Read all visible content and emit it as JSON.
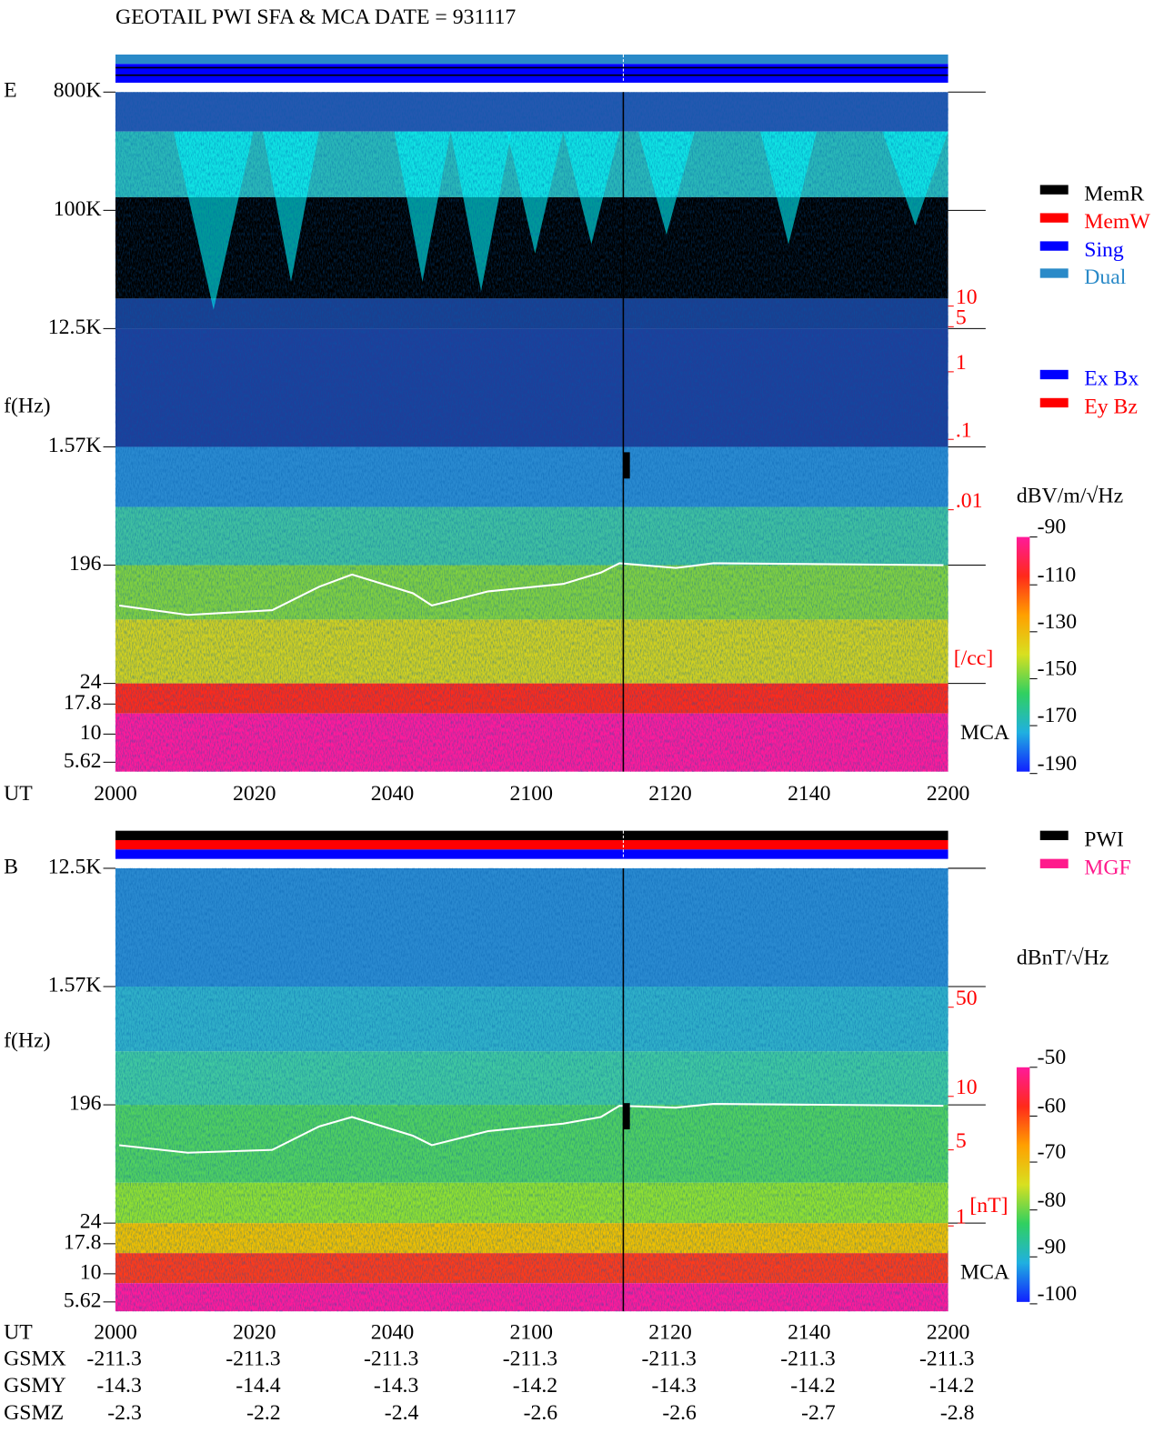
{
  "title": "GEOTAIL  PWI SFA & MCA   DATE = 931117",
  "panels": [
    {
      "label": "E",
      "freq_axis": {
        "label": "f(Hz)",
        "ticks": [
          "800K",
          "100K",
          "12.5K",
          "1.57K",
          "196",
          "24",
          "17.8",
          "10",
          "5.62"
        ]
      },
      "density_axis": {
        "ticks": [
          "10",
          "5",
          "1",
          ".1",
          ".01"
        ],
        "unit": "[/cc]"
      },
      "mca_label": "MCA",
      "time_axis": {
        "label": "UT",
        "ticks": [
          "2000",
          "2020",
          "2040",
          "2100",
          "2120",
          "2140",
          "2200"
        ]
      },
      "legends": [
        [
          {
            "name": "MemR",
            "color": "#000000"
          },
          {
            "name": "MemW",
            "color": "#ff0000"
          },
          {
            "name": "Sing",
            "color": "#0000ff"
          },
          {
            "name": "Dual",
            "color": "#2a8ac8"
          }
        ],
        [
          {
            "name": "Ex Bx",
            "color": "#0000ff"
          },
          {
            "name": "Ey Bz",
            "color": "#ff0000"
          }
        ]
      ],
      "colorbar": {
        "unit": "dBV/m/√Hz",
        "ticks": [
          "-90",
          "-110",
          "-130",
          "-150",
          "-170",
          "-190"
        ]
      }
    },
    {
      "label": "B",
      "freq_axis": {
        "label": "f(Hz)",
        "ticks": [
          "12.5K",
          "1.57K",
          "196",
          "24",
          "17.8",
          "10",
          "5.62"
        ]
      },
      "density_axis": {
        "ticks": [
          "50",
          "10",
          "5",
          "1"
        ],
        "unit": "[nT]"
      },
      "mca_label": "MCA",
      "time_axis": {
        "label": "UT",
        "ticks": [
          "2000",
          "2020",
          "2040",
          "2100",
          "2120",
          "2140",
          "2200"
        ]
      },
      "legends": [
        [
          {
            "name": "PWI",
            "color": "#000000"
          },
          {
            "name": "MGF",
            "color": "#ff1a8c"
          }
        ]
      ],
      "colorbar": {
        "unit": "dBnT/√Hz",
        "ticks": [
          "-50",
          "-60",
          "-70",
          "-80",
          "-90",
          "-100"
        ]
      }
    }
  ],
  "orbit": {
    "rows": [
      {
        "label": "GSMX",
        "values": [
          "-211.3",
          "-211.3",
          "-211.3",
          "-211.3",
          "-211.3",
          "-211.3",
          "-211.3"
        ]
      },
      {
        "label": "GSMY",
        "values": [
          "-14.3",
          "-14.4",
          "-14.3",
          "-14.2",
          "-14.3",
          "-14.2",
          "-14.2"
        ]
      },
      {
        "label": "GSMZ",
        "values": [
          "-2.3",
          "-2.2",
          "-2.4",
          "-2.6",
          "-2.6",
          "-2.7",
          "-2.8"
        ]
      }
    ]
  }
}
